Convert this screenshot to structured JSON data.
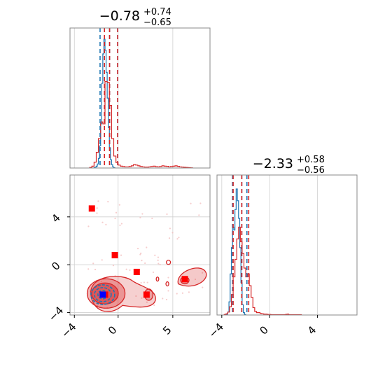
{
  "chart_data": {
    "type": "corner",
    "parameters": [
      "",
      ""
    ],
    "titles": [
      {
        "median": "−0.78",
        "plus": "+0.74",
        "minus": "−0.65"
      },
      {
        "median": "−2.33",
        "plus": "+0.58",
        "minus": "−0.56"
      }
    ],
    "axes": {
      "x1": {
        "range": [
          -4.4,
          8.4
        ],
        "ticks": [
          -4,
          0,
          5
        ],
        "tick_labels": [
          "−4",
          "0",
          "5"
        ]
      },
      "x2": {
        "range": [
          -4.4,
          7.3
        ],
        "ticks": [
          -4,
          0,
          4
        ],
        "tick_labels": [
          "−4",
          "0",
          "4"
        ]
      },
      "y2": {
        "range": [
          -4.2,
          7.5
        ],
        "ticks": [
          -4,
          0,
          4
        ],
        "tick_labels": [
          "−4",
          "0",
          "4"
        ]
      }
    },
    "grid": true,
    "colors": {
      "blue": "#1f77b4",
      "red": "#d62728",
      "marker": "#ff0000",
      "truth": "#0000ff"
    },
    "series": [
      {
        "color": "#1f77b4",
        "quantiles_x1": [
          -1.65,
          -0.78,
          -0.04
        ],
        "quantiles_x2": [
          -3.1,
          -2.33,
          -1.9
        ],
        "hist_x1": {
          "start": -2.2,
          "step": 0.1,
          "counts": [
            2,
            5,
            10,
            22,
            52,
            120,
            240,
            460,
            620,
            700,
            640,
            520,
            380,
            220,
            110,
            45,
            18,
            6,
            2
          ]
        },
        "hist_x2": {
          "start": -3.6,
          "step": 0.1,
          "counts": [
            3,
            10,
            45,
            140,
            230,
            300,
            290,
            360,
            430,
            390,
            330,
            230,
            110,
            35,
            8,
            2
          ]
        },
        "contour_center": [
          -1.4,
          -2.5
        ]
      },
      {
        "color": "#d62728",
        "quantiles_x1": [
          -1.25,
          -0.78,
          -0.04
        ],
        "quantiles_x2": [
          -3.05,
          -2.33,
          -1.75
        ],
        "hist_x1": {
          "start": -2.6,
          "step": 0.2,
          "counts": [
            3,
            10,
            32,
            85,
            160,
            250,
            240,
            470,
            465,
            340,
            160,
            65,
            30,
            16,
            10,
            8,
            6,
            6,
            8,
            12,
            18,
            16,
            12,
            8,
            6,
            5,
            5,
            6,
            8,
            10,
            7,
            6,
            8,
            12,
            10,
            9,
            6,
            8,
            10,
            12,
            9,
            6,
            5,
            4,
            3,
            2,
            1
          ]
        },
        "hist_x2": {
          "start": -3.8,
          "step": 0.15,
          "counts": [
            2,
            4,
            10,
            28,
            70,
            130,
            190,
            260,
            300,
            250,
            210,
            160,
            130,
            140,
            100,
            60,
            25,
            12,
            8,
            8,
            5,
            4,
            3,
            3,
            2,
            2,
            1,
            1,
            1,
            1,
            1,
            1,
            1,
            1,
            2,
            3,
            1,
            1,
            1,
            1,
            1,
            1,
            1
          ]
        }
      }
    ],
    "markers": [
      {
        "x": -2.4,
        "y": 4.7
      },
      {
        "x": -0.3,
        "y": 0.8
      },
      {
        "x": 1.7,
        "y": -0.6
      },
      {
        "x": 2.6,
        "y": -2.5
      },
      {
        "x": 6.1,
        "y": -1.2
      },
      {
        "x": -1.2,
        "y": -2.5
      }
    ],
    "truth": {
      "x": -1.4,
      "y": -2.5
    }
  }
}
